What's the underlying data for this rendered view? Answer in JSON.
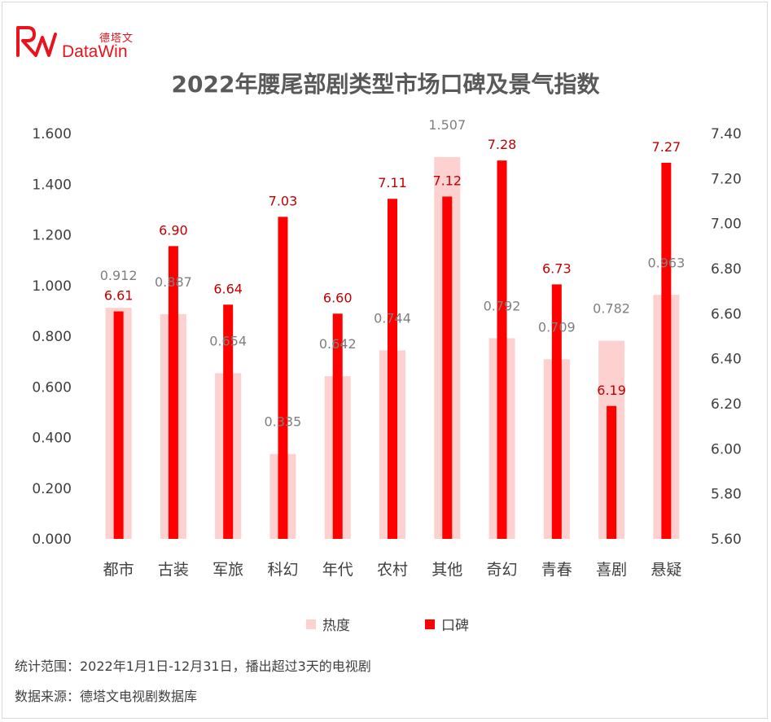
{
  "logo": {
    "cn": "德塔文",
    "en": "DataWin"
  },
  "title": "2022年腰尾部剧类型市场口碑及景气指数",
  "footnotes": {
    "scope": "统计范围：2022年1月1日-12月31日，播出超过3天的电视剧",
    "source": "数据来源：德塔文电视剧数据库"
  },
  "colors": {
    "heat": "#fcd1d0",
    "score": "#ff0000",
    "score_label": "#c00000",
    "heat_label": "#7f7f7f"
  },
  "chart_data": {
    "type": "bar",
    "title": "2022年腰尾部剧类型市场口碑及景气指数",
    "categories": [
      "都市",
      "古装",
      "军旅",
      "科幻",
      "年代",
      "农村",
      "其他",
      "奇幻",
      "青春",
      "喜剧",
      "悬疑"
    ],
    "series": [
      {
        "name": "热度",
        "axis": "left",
        "values": [
          0.912,
          0.887,
          0.654,
          0.335,
          0.642,
          0.744,
          1.507,
          0.792,
          0.709,
          0.782,
          0.963
        ],
        "labels": [
          "0.912",
          "0.887",
          "0.654",
          "0.335",
          "0.642",
          "0.744",
          "1.507",
          "0.792",
          "0.709",
          "0.782",
          "0.963"
        ]
      },
      {
        "name": "口碑",
        "axis": "right",
        "values": [
          6.61,
          6.9,
          6.64,
          7.03,
          6.6,
          7.11,
          7.12,
          7.28,
          6.73,
          6.19,
          7.27
        ],
        "labels": [
          "6.61",
          "6.90",
          "6.64",
          "7.03",
          "6.60",
          "7.11",
          "7.12",
          "7.28",
          "6.73",
          "6.19",
          "7.27"
        ]
      }
    ],
    "y_left": {
      "range": [
        0,
        1.6
      ],
      "ticks": [
        "0.000",
        "0.200",
        "0.400",
        "0.600",
        "0.800",
        "1.000",
        "1.200",
        "1.400",
        "1.600"
      ]
    },
    "y_right": {
      "range": [
        5.6,
        7.4
      ],
      "ticks": [
        "5.60",
        "5.80",
        "6.00",
        "6.20",
        "6.40",
        "6.60",
        "6.80",
        "7.00",
        "7.20",
        "7.40"
      ]
    },
    "legend": [
      "热度",
      "口碑"
    ],
    "legend_position": "bottom",
    "grid": false
  }
}
